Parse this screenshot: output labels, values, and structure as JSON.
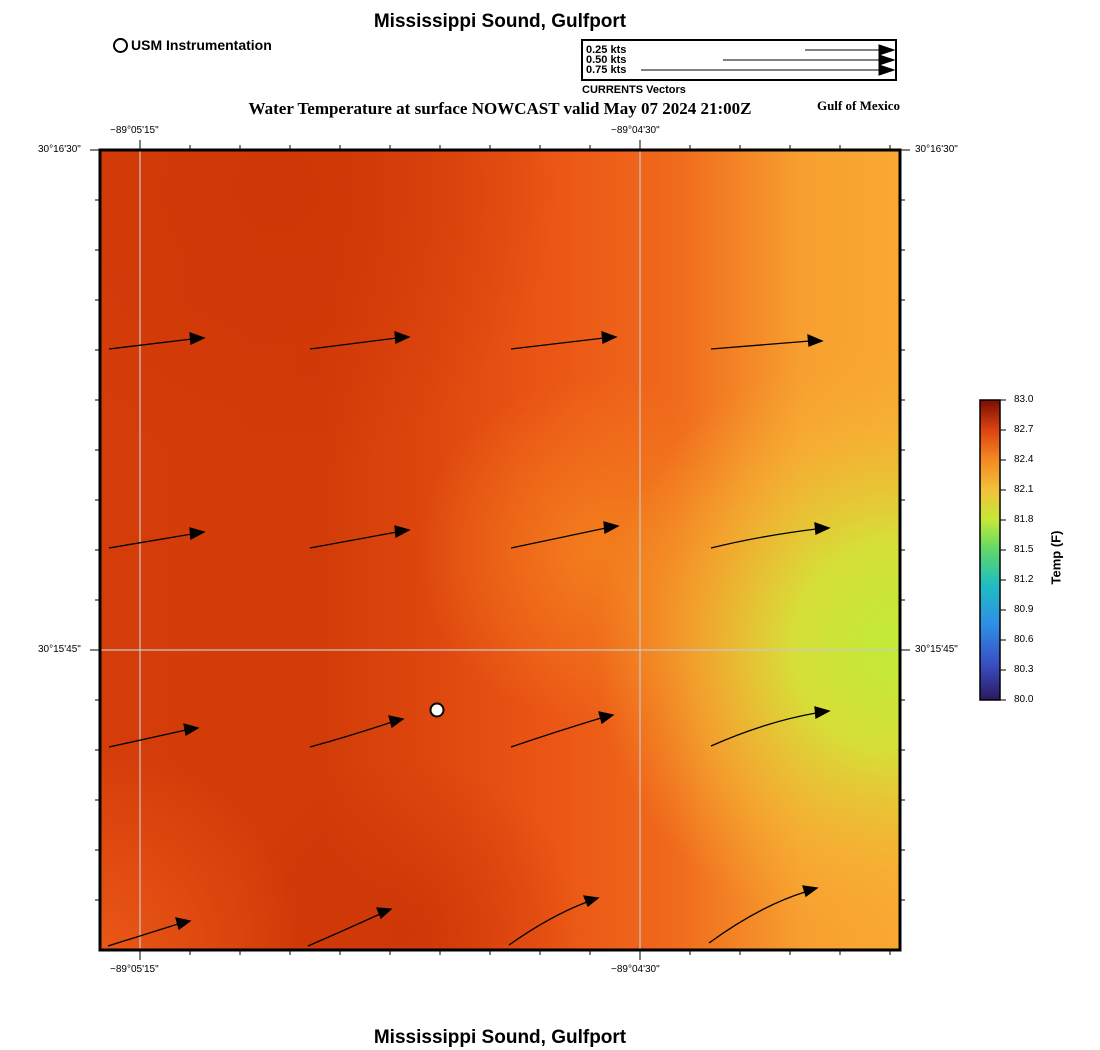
{
  "map": {
    "title_top": "Mississippi Sound, Gulfport",
    "title_bottom": "Mississippi Sound, Gulfport",
    "main_title": "Water Temperature at surface NOWCAST valid May 07 2024 21:00Z",
    "region_label": "Gulf of Mexico",
    "station_legend": "USM Instrumentation"
  },
  "vector_legend": {
    "caption": "CURRENTS Vectors",
    "rows": [
      "0.25 kts",
      "0.50 kts",
      "0.75 kts"
    ]
  },
  "axes": {
    "x_top": [
      "−89°05'15\"",
      "−89°04'30\""
    ],
    "x_bottom": [
      "−89°05'15\"",
      "−89°04'30\""
    ],
    "y_left": [
      "30°16'30\"",
      "30°15'45\""
    ],
    "y_right": [
      "30°16'30\"",
      "30°15'45\""
    ]
  },
  "colorbar": {
    "title": "Temp (F)",
    "labels": [
      "83.0",
      "82.7",
      "82.4",
      "82.1",
      "81.8",
      "81.5",
      "81.2",
      "80.9",
      "80.6",
      "80.3",
      "80.0"
    ]
  },
  "colors": {
    "warm_dark": "#d13b08",
    "warm_mid": "#ef5f16",
    "warm_light": "#f9a030",
    "yellow": "#f0c83a",
    "green": "#c2ec36"
  }
}
